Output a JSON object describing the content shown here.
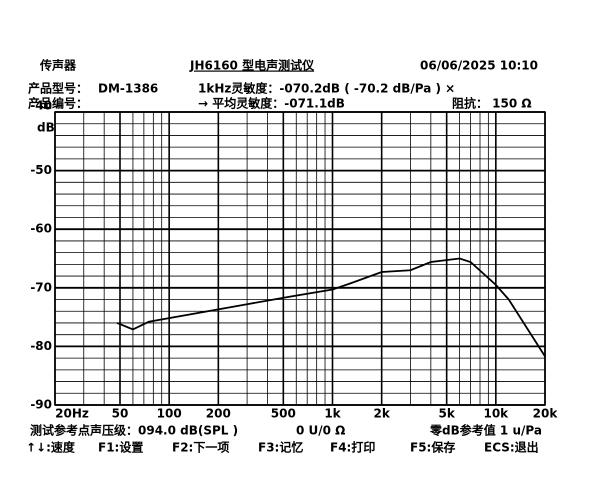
{
  "header": {
    "device": "传声器",
    "title": "JH6160 型电声测试仪",
    "datetime": "06/06/2025  10:10",
    "model_label": "产品型号：",
    "model": "DM-1386",
    "sensitivity": "1kHz灵敏度：-070.2dB ( -70.2 dB/Pa ) ×",
    "serial_label": "产品编号：",
    "avg_sensitivity": "→ 平均灵敏度：-071.1dB",
    "impedance": "阻抗： 150 Ω"
  },
  "chart_data": {
    "type": "line",
    "y_label": "dB",
    "xscale": "log",
    "color": "#000000",
    "x": [
      48,
      60,
      75,
      150,
      300,
      550,
      1000,
      1300,
      2000,
      3000,
      4000,
      6000,
      7000,
      10000,
      12000,
      20000
    ],
    "values": [
      -76,
      -77.1,
      -75.8,
      -74.3,
      -72.8,
      -71.5,
      -70.3,
      -69.2,
      -67.3,
      -67,
      -65.6,
      -65,
      -65.6,
      -69.5,
      -72,
      -81.7
    ],
    "xlim": [
      20,
      20000
    ],
    "ylim": [
      -90,
      -40
    ],
    "xticks": [
      {
        "value": 20,
        "label": "20Hz"
      },
      50,
      100,
      200,
      500,
      {
        "value": 1000,
        "label": "1k"
      },
      {
        "value": 2000,
        "label": "2k"
      },
      {
        "value": 5000,
        "label": "5k"
      },
      {
        "value": 10000,
        "label": "10k"
      },
      {
        "value": 20000,
        "label": "20k"
      }
    ],
    "minor_xticks": [
      30,
      40,
      60,
      70,
      80,
      90,
      300,
      400,
      600,
      700,
      800,
      900,
      3000,
      4000,
      6000,
      7000,
      8000,
      9000
    ],
    "yticks": [
      -40,
      -50,
      -60,
      -70,
      -80,
      -90
    ],
    "minor_yticks": [
      -42,
      -44,
      -46,
      -48,
      -52,
      -54,
      -56,
      -58,
      -62,
      -64,
      -66,
      -68,
      -72,
      -74,
      -76,
      -78,
      -82,
      -84,
      -86,
      -88
    ],
    "grid": true
  },
  "footer": {
    "spl": "测试参考点声压级：094.0 dB(SPL )",
    "uv": "0 U/0 Ω",
    "ref": "零dB参考值 1 u/Pa",
    "keys": [
      "↑↓:速度",
      "F1:设置",
      "F2:下一项",
      "F3:记忆",
      "F4:打印",
      "F5:保存",
      "ECS:退出"
    ]
  }
}
